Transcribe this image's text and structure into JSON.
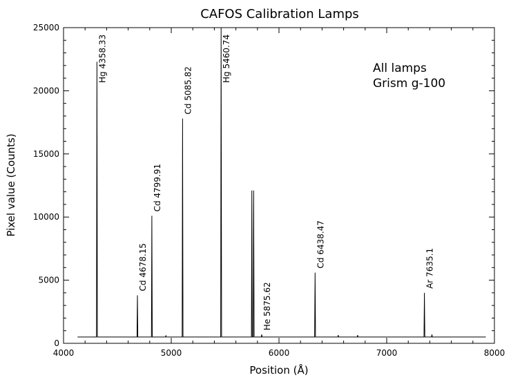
{
  "chart_data": {
    "type": "line",
    "title": "CAFOS Calibration Lamps",
    "xlabel": "Position (Å)",
    "ylabel": "Pixel value (Counts)",
    "xlim": [
      4000,
      8000
    ],
    "ylim": [
      0,
      25000
    ],
    "grid": false,
    "x_ticks": [
      "4000",
      "5000",
      "6000",
      "7000",
      "8000"
    ],
    "y_ticks": [
      "0",
      "5000",
      "10000",
      "15000",
      "20000",
      "25000"
    ],
    "annotation_lines": [
      "All lamps",
      "Grism g-100"
    ],
    "baseline": 500,
    "data_range": [
      4130,
      7920
    ],
    "series": [
      {
        "peaks": [
          {
            "x": 4310,
            "y": 22300,
            "label": "Hg 4358.33"
          },
          {
            "x": 4686,
            "y": 3800,
            "label": "Cd 4678.15"
          },
          {
            "x": 4820,
            "y": 10100,
            "label": "Cd 4799.91"
          },
          {
            "x": 5105,
            "y": 17800,
            "label": "Cd 5085.82"
          },
          {
            "x": 5463,
            "y": 25000,
            "label": "Hg 5460.74"
          },
          {
            "x": 5748,
            "y": 12100,
            "label": ""
          },
          {
            "x": 5765,
            "y": 12100,
            "label": ""
          },
          {
            "x": 5840,
            "y": 700,
            "label": "He 5875.62"
          },
          {
            "x": 6335,
            "y": 5600,
            "label": "Cd 6438.47"
          },
          {
            "x": 7350,
            "y": 4000,
            "label": "Ar 7635.1"
          },
          {
            "x": 4950,
            "y": 600,
            "label": ""
          },
          {
            "x": 6550,
            "y": 650,
            "label": ""
          },
          {
            "x": 6730,
            "y": 650,
            "label": ""
          },
          {
            "x": 7420,
            "y": 700,
            "label": ""
          }
        ]
      }
    ]
  }
}
